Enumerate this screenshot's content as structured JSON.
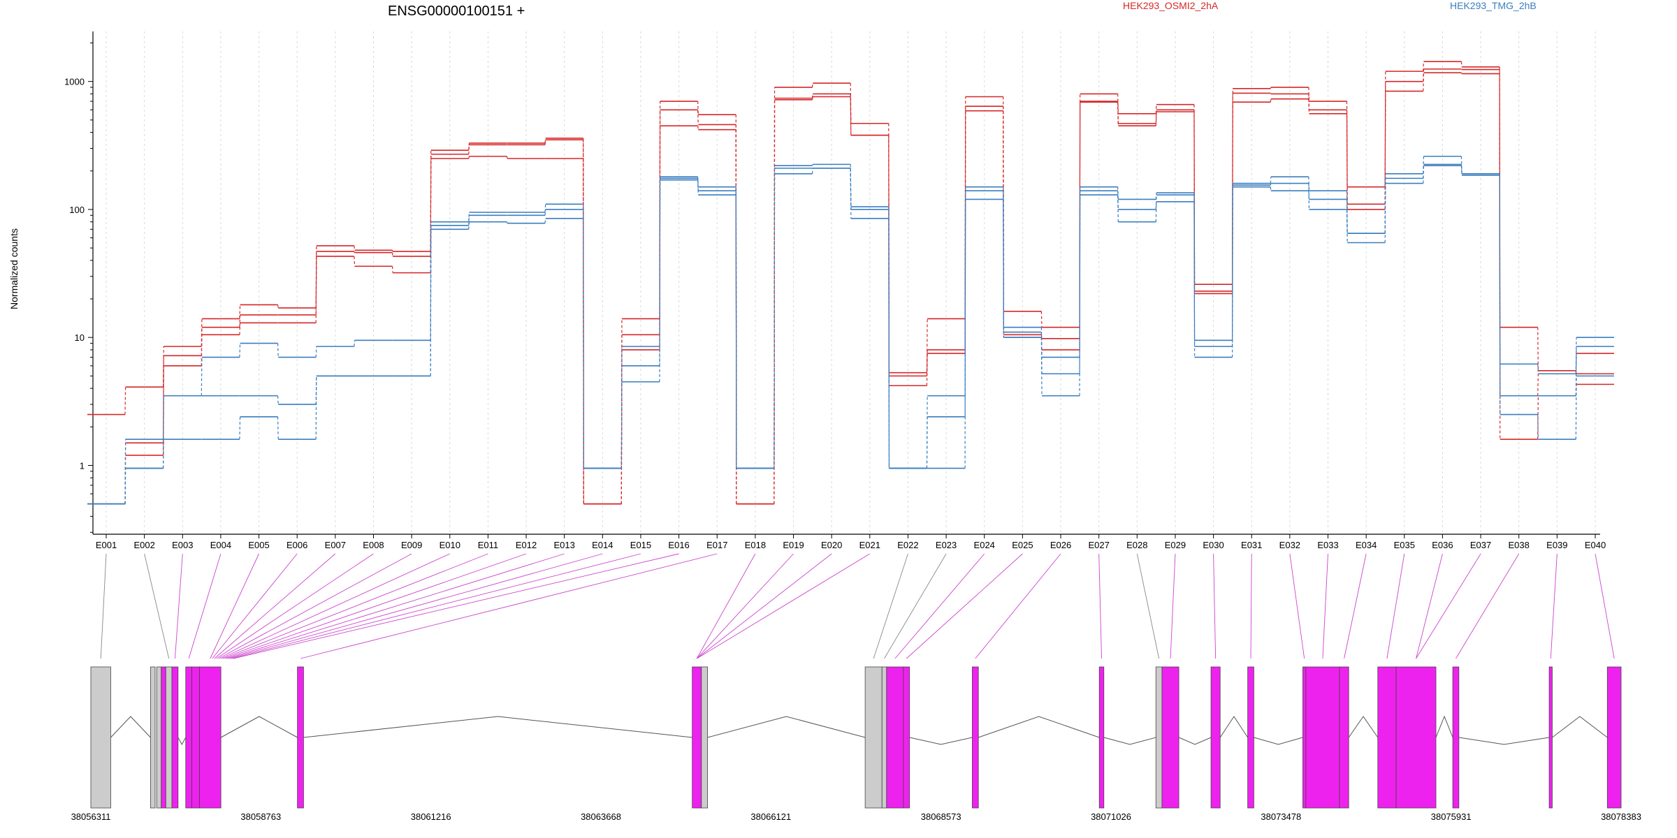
{
  "chart_data": {
    "type": "line",
    "title": "ENSG00000100151 +",
    "ylabel": "Normalized counts",
    "y_scale": "log",
    "ylim": [
      0.4,
      2000
    ],
    "y_ticks": [
      1,
      10,
      100,
      1000
    ],
    "y_tick_labels": [
      "1",
      "10",
      "100",
      "1000"
    ],
    "grid": "vertical dotted gridlines per exon",
    "legend_position": "top",
    "colors": {
      "HEK293_OSMI2_2hA": "#d62728",
      "HEK293_TMG_2hB": "#3a7ebf",
      "exon_tested": "#ee22ee",
      "exon_other": "#cccccc"
    },
    "categories": [
      "E001",
      "E002",
      "E003",
      "E004",
      "E005",
      "E006",
      "E007",
      "E008",
      "E009",
      "E010",
      "E011",
      "E012",
      "E013",
      "E014",
      "E015",
      "E016",
      "E017",
      "E018",
      "E019",
      "E020",
      "E021",
      "E022",
      "E023",
      "E024",
      "E025",
      "E026",
      "E027",
      "E028",
      "E029",
      "E030",
      "E031",
      "E032",
      "E033",
      "E034",
      "E035",
      "E036",
      "E037",
      "E038",
      "E039",
      "E040"
    ],
    "series": [
      {
        "name": "HEK293_OSMI2_2hA",
        "group": "HEK293_OSMI2_2hA",
        "values": [
          2.5,
          4.1,
          8.5,
          14,
          18,
          17,
          52,
          48,
          47,
          290,
          330,
          330,
          360,
          0.5,
          14,
          700,
          550,
          0.5,
          900,
          970,
          470,
          5,
          14,
          760,
          16,
          12,
          800,
          560,
          660,
          26,
          880,
          900,
          700,
          150,
          1200,
          1430,
          1300,
          12,
          5.5,
          5.2
        ]
      },
      {
        "name": "HEK293_OSMI2_2hA",
        "group": "HEK293_OSMI2_2hA",
        "values": [
          0.5,
          1.2,
          6,
          10.5,
          13,
          13,
          43,
          36,
          32,
          250,
          260,
          250,
          250,
          0.5,
          8,
          450,
          420,
          0.5,
          720,
          760,
          380,
          4.2,
          7.5,
          590,
          10,
          8,
          690,
          450,
          580,
          22,
          690,
          730,
          560,
          100,
          840,
          1170,
          1150,
          1.6,
          3.5,
          4.3
        ]
      },
      {
        "name": "HEK293_OSMI2_2hA",
        "group": "HEK293_OSMI2_2hA",
        "values": [
          0.5,
          1.5,
          7.2,
          12,
          15,
          15,
          47,
          46,
          43,
          270,
          320,
          320,
          350,
          0.5,
          10.5,
          600,
          460,
          0.5,
          740,
          800,
          380,
          5.3,
          8,
          640,
          10.5,
          9.8,
          700,
          470,
          600,
          23,
          810,
          800,
          600,
          110,
          1000,
          1250,
          1240,
          3.5,
          5.2,
          7.5
        ]
      },
      {
        "name": "HEK293_TMG_2hB",
        "group": "HEK293_TMG_2hB",
        "values": [
          0.5,
          0.95,
          3.5,
          7,
          9,
          7,
          8.5,
          9.5,
          9.5,
          80,
          95,
          95,
          110,
          0.95,
          8.5,
          180,
          150,
          0.95,
          220,
          225,
          105,
          0.95,
          3.5,
          150,
          12,
          7,
          150,
          120,
          135,
          9.5,
          160,
          180,
          140,
          65,
          190,
          260,
          190,
          6.2,
          5.2,
          10
        ]
      },
      {
        "name": "HEK293_TMG_2hB",
        "group": "HEK293_TMG_2hB",
        "values": [
          0.5,
          1.6,
          3.5,
          3.5,
          3.5,
          3,
          5,
          5,
          5,
          70,
          80,
          78,
          85,
          0.95,
          4.5,
          170,
          130,
          0.95,
          190,
          210,
          85,
          0.95,
          2.4,
          120,
          10,
          3.5,
          130,
          80,
          115,
          7,
          150,
          140,
          100,
          55,
          160,
          220,
          185,
          2.5,
          1.6,
          5
        ]
      },
      {
        "name": "HEK293_TMG_2hB",
        "group": "HEK293_TMG_2hB",
        "values": [
          0.5,
          0.95,
          1.6,
          1.6,
          2.4,
          1.6,
          5,
          5,
          5,
          75,
          90,
          90,
          100,
          0.95,
          6,
          175,
          140,
          0.95,
          210,
          210,
          100,
          0.95,
          0.95,
          140,
          11,
          5.2,
          140,
          100,
          130,
          8.5,
          155,
          160,
          120,
          65,
          175,
          225,
          190,
          3.5,
          3.5,
          8.5
        ]
      }
    ],
    "lower_panel": {
      "type": "gene_model",
      "genomic_ticks": [
        "38056311",
        "38058763",
        "38061216",
        "38063668",
        "38066121",
        "38068573",
        "38071026",
        "38073478",
        "38075931",
        "38078383"
      ],
      "exon_segments": [
        {
          "start": 0.0,
          "end": 0.013,
          "tested": false
        },
        {
          "start": 0.039,
          "end": 0.042,
          "tested": false
        },
        {
          "start": 0.043,
          "end": 0.046,
          "tested": false
        },
        {
          "start": 0.046,
          "end": 0.049,
          "tested": true
        },
        {
          "start": 0.049,
          "end": 0.053,
          "tested": false
        },
        {
          "start": 0.053,
          "end": 0.057,
          "tested": true
        },
        {
          "start": 0.062,
          "end": 0.066,
          "tested": true
        },
        {
          "start": 0.066,
          "end": 0.071,
          "tested": true
        },
        {
          "start": 0.071,
          "end": 0.085,
          "tested": true
        },
        {
          "start": 0.135,
          "end": 0.139,
          "tested": true
        },
        {
          "start": 0.393,
          "end": 0.399,
          "tested": true
        },
        {
          "start": 0.399,
          "end": 0.403,
          "tested": false
        },
        {
          "start": 0.506,
          "end": 0.517,
          "tested": false
        },
        {
          "start": 0.517,
          "end": 0.52,
          "tested": false
        },
        {
          "start": 0.52,
          "end": 0.531,
          "tested": true
        },
        {
          "start": 0.531,
          "end": 0.535,
          "tested": true
        },
        {
          "start": 0.576,
          "end": 0.58,
          "tested": true
        },
        {
          "start": 0.659,
          "end": 0.662,
          "tested": true
        },
        {
          "start": 0.696,
          "end": 0.7,
          "tested": false
        },
        {
          "start": 0.7,
          "end": 0.711,
          "tested": true
        },
        {
          "start": 0.732,
          "end": 0.738,
          "tested": true
        },
        {
          "start": 0.756,
          "end": 0.76,
          "tested": true
        },
        {
          "start": 0.792,
          "end": 0.794,
          "tested": true
        },
        {
          "start": 0.794,
          "end": 0.816,
          "tested": true
        },
        {
          "start": 0.816,
          "end": 0.822,
          "tested": true
        },
        {
          "start": 0.841,
          "end": 0.853,
          "tested": true
        },
        {
          "start": 0.853,
          "end": 0.879,
          "tested": true
        },
        {
          "start": 0.89,
          "end": 0.894,
          "tested": true
        },
        {
          "start": 0.953,
          "end": 0.955,
          "tested": true
        },
        {
          "start": 0.991,
          "end": 1.0,
          "tested": true
        }
      ]
    }
  }
}
